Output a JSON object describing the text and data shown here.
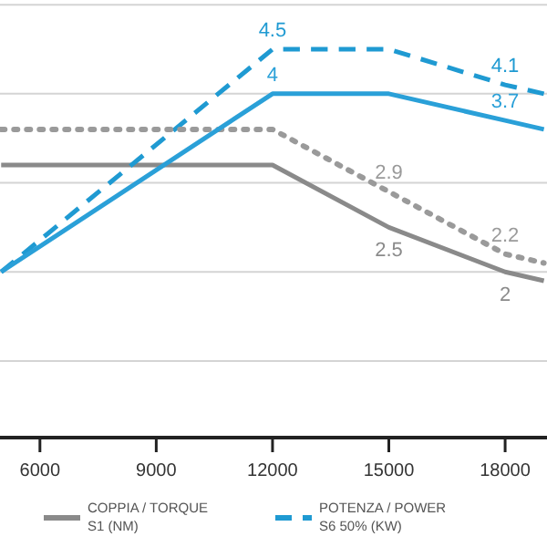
{
  "chart_data": {
    "type": "line",
    "x": [
      5000,
      12000,
      15000,
      18000,
      19000
    ],
    "xlim": [
      4970,
      19080
    ],
    "xticks": [
      6000,
      9000,
      12000,
      15000,
      18000
    ],
    "grid": "y",
    "legend": "bottom",
    "marker": "none",
    "series": [
      {
        "name": "COPPIA / TORQUE\nS1 (NM)",
        "color": "#8a8a8a",
        "line_style": "solid",
        "values": [
          3.2,
          3.2,
          2.5,
          2.0,
          1.9
        ],
        "value_labels": [
          null,
          null,
          "2.5",
          "2",
          null
        ]
      },
      {
        "name": "POTENZA / POWER\nS6 50% (KW)",
        "color": "#1f9ad2",
        "line_style": "dashed",
        "values": [
          2.0,
          4.5,
          4.5,
          4.1,
          4.0
        ],
        "value_labels": [
          null,
          "4.5",
          null,
          "4.1",
          null
        ]
      },
      {
        "color": "#9a9a9a",
        "line_style": "dotted",
        "values": [
          3.6,
          3.6,
          2.9,
          2.2,
          2.1
        ],
        "value_labels": [
          null,
          null,
          "2.9",
          "2.2",
          null
        ]
      },
      {
        "color": "#2aa0d8",
        "line_style": "solid",
        "values": [
          2.0,
          4.0,
          4.0,
          3.7,
          3.6
        ],
        "value_labels": [
          null,
          "4",
          null,
          "3.7",
          null
        ]
      }
    ]
  }
}
